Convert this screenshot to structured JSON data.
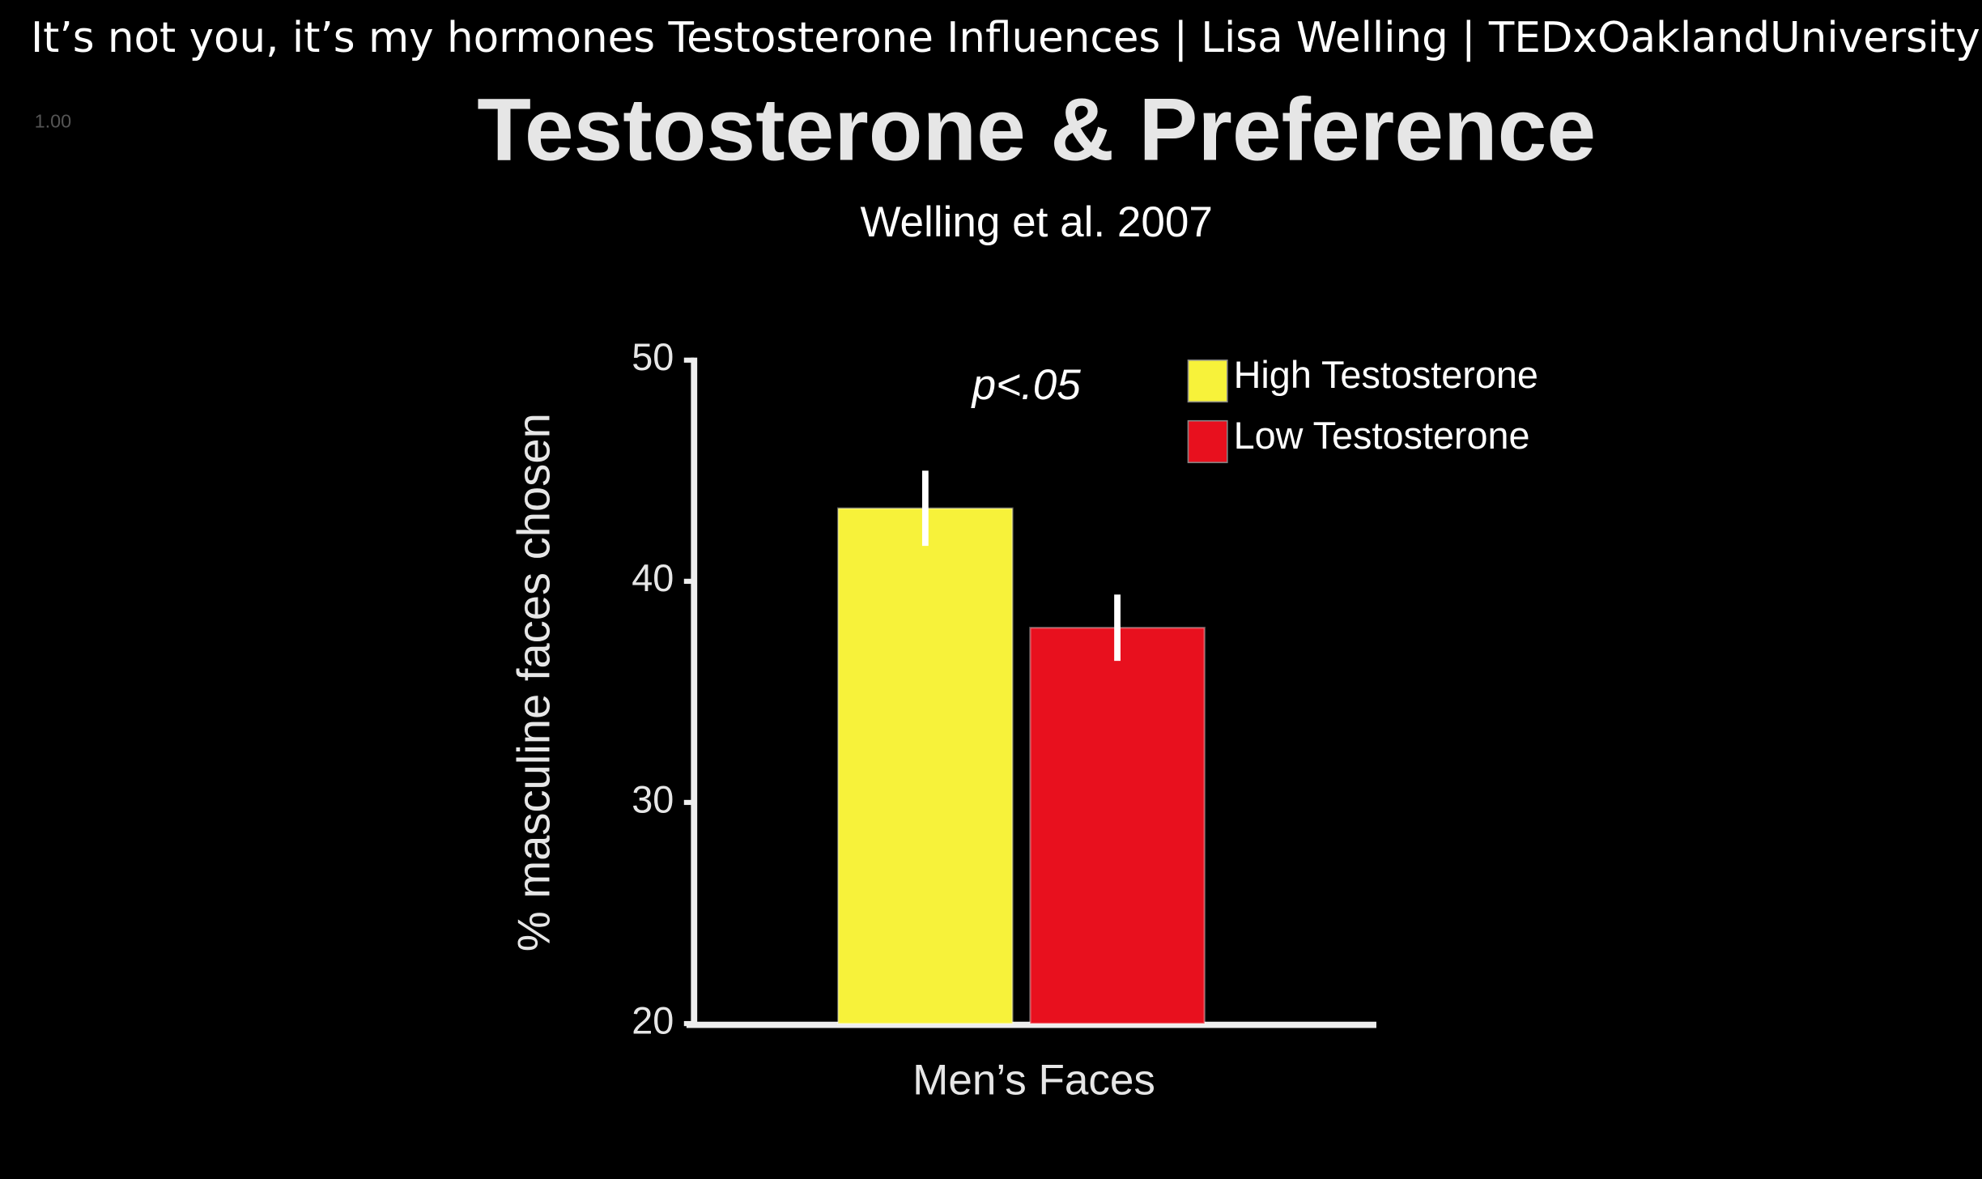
{
  "video_title": "It’s not you, it’s my hormones Testosterone Influences | Lisa Welling | TEDxOaklandUniversity",
  "playback_speed": "1.00",
  "chart_data": {
    "type": "bar",
    "title": "Testosterone & Preference",
    "subtitle": "Welling et al. 2007",
    "y_label": "% masculine faces chosen",
    "annotation": "p<.05",
    "categories": [
      "Men’s Faces"
    ],
    "series": [
      {
        "name": "High Testosterone",
        "color": "#f7f23a",
        "values": [
          43.3
        ],
        "errors": [
          1.7
        ]
      },
      {
        "name": "Low Testosterone",
        "color": "#e8101e",
        "values": [
          37.9
        ],
        "errors": [
          1.5
        ]
      }
    ],
    "ylim": [
      20,
      50
    ],
    "yticks": [
      20,
      30,
      40,
      50
    ],
    "legend": "top-right",
    "grid": false
  }
}
